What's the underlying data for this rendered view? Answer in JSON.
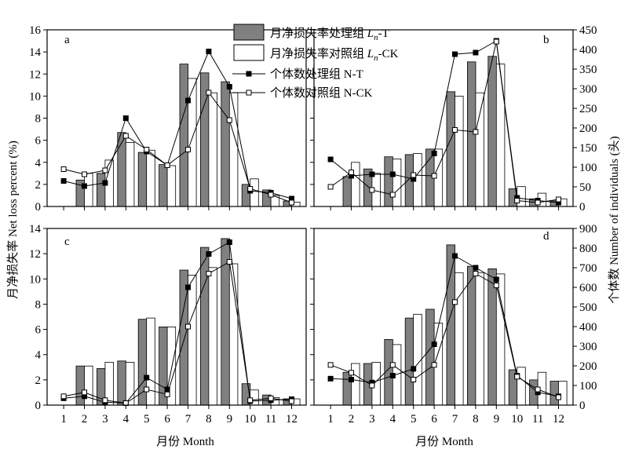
{
  "figure": {
    "left_axis_title": "月净损失率 Net loss percent (%)",
    "right_axis_title": "个体数 Number of individuals (头)",
    "x_axis_title": "月份  Month"
  },
  "legend": {
    "items": [
      {
        "label": "月净损失率处理组",
        "sym": "L",
        "sub": "n",
        "suffix": "-T",
        "kind": "bar",
        "color": "#808080"
      },
      {
        "label": "月净损失率对照组",
        "sym": "L",
        "sub": "n",
        "suffix": "-CK",
        "kind": "bar",
        "color": "#ffffff"
      },
      {
        "label": "个体数处理组 N-T",
        "kind": "line",
        "marker": "filled-square"
      },
      {
        "label": "个体数对照组 N-CK",
        "kind": "line",
        "marker": "open-square"
      }
    ]
  },
  "colors": {
    "bar_treatment": "#808080",
    "bar_control": "#ffffff",
    "line": "#000000"
  },
  "chart_data": [
    {
      "panel": "a",
      "type": "bar",
      "categories": [
        "1",
        "2",
        "3",
        "4",
        "5",
        "6",
        "7",
        "8",
        "9",
        "10",
        "11",
        "12"
      ],
      "left_ylim": [
        0,
        16
      ],
      "left_yticks": [
        0,
        2,
        4,
        6,
        8,
        10,
        12,
        14,
        16
      ],
      "right_ylim": [
        0,
        450
      ],
      "right_yticks": [
        0,
        50,
        100,
        150,
        200,
        250,
        300,
        350,
        400,
        450
      ],
      "series": [
        {
          "name": "月净损失率处理组 Ln-T",
          "kind": "bar",
          "axis": "left",
          "values": [
            null,
            2.4,
            3.0,
            6.7,
            4.9,
            3.8,
            12.9,
            12.1,
            11.3,
            2.0,
            1.5,
            0.5
          ]
        },
        {
          "name": "月净损失率对照组 Ln-CK",
          "kind": "bar",
          "axis": "left",
          "values": [
            null,
            3.0,
            4.2,
            5.8,
            5.1,
            3.7,
            11.6,
            10.3,
            10.3,
            2.5,
            1.0,
            0.4
          ]
        },
        {
          "name": "个体数处理组 N-T",
          "kind": "line",
          "axis": "right",
          "marker": "filled",
          "values": [
            65,
            52,
            60,
            225,
            140,
            105,
            270,
            395,
            305,
            40,
            35,
            20
          ]
        },
        {
          "name": "个体数对照组 N-CK",
          "kind": "line",
          "axis": "right",
          "marker": "open",
          "values": [
            95,
            82,
            92,
            180,
            145,
            105,
            145,
            290,
            220,
            45,
            30,
            10
          ]
        }
      ]
    },
    {
      "panel": "b",
      "type": "bar",
      "categories": [
        "1",
        "2",
        "3",
        "4",
        "5",
        "6",
        "7",
        "8",
        "9",
        "10",
        "11",
        "12"
      ],
      "left_ylim": [
        0,
        16
      ],
      "left_yticks": [
        0,
        2,
        4,
        6,
        8,
        10,
        12,
        14,
        16
      ],
      "right_ylim": [
        0,
        450
      ],
      "right_yticks": [
        0,
        50,
        100,
        150,
        200,
        250,
        300,
        350,
        400,
        450
      ],
      "series": [
        {
          "name": "月净损失率处理组 Ln-T",
          "kind": "bar",
          "axis": "left",
          "values": [
            null,
            2.7,
            3.4,
            4.5,
            4.7,
            5.2,
            10.4,
            13.1,
            13.6,
            1.6,
            0.7,
            0.5
          ]
        },
        {
          "name": "月净损失率对照组 Ln-CK",
          "kind": "bar",
          "axis": "left",
          "values": [
            null,
            4.0,
            3.0,
            4.3,
            4.8,
            5.2,
            10.0,
            10.3,
            12.9,
            1.8,
            1.2,
            0.7
          ]
        },
        {
          "name": "个体数处理组 N-T",
          "kind": "line",
          "axis": "right",
          "marker": "filled",
          "values": [
            120,
            78,
            82,
            82,
            70,
            135,
            388,
            392,
            422,
            22,
            15,
            10
          ]
        },
        {
          "name": "个体数对照组 N-CK",
          "kind": "line",
          "axis": "right",
          "marker": "open",
          "values": [
            50,
            87,
            42,
            30,
            80,
            78,
            195,
            190,
            420,
            15,
            10,
            18
          ]
        }
      ]
    },
    {
      "panel": "c",
      "type": "bar",
      "categories": [
        "1",
        "2",
        "3",
        "4",
        "5",
        "6",
        "7",
        "8",
        "9",
        "10",
        "11",
        "12"
      ],
      "left_ylim": [
        0,
        14
      ],
      "left_yticks": [
        0,
        2,
        4,
        6,
        8,
        10,
        12,
        14
      ],
      "right_ylim": [
        0,
        900
      ],
      "right_yticks": [
        0,
        100,
        200,
        300,
        400,
        500,
        600,
        700,
        800,
        900
      ],
      "series": [
        {
          "name": "月净损失率处理组 Ln-T",
          "kind": "bar",
          "axis": "left",
          "values": [
            null,
            3.1,
            2.9,
            3.5,
            6.8,
            6.2,
            10.7,
            12.5,
            13.2,
            1.7,
            0.8,
            0.5
          ]
        },
        {
          "name": "月净损失率对照组 Ln-CK",
          "kind": "bar",
          "axis": "left",
          "values": [
            null,
            3.1,
            3.4,
            3.4,
            6.9,
            6.2,
            10.3,
            10.9,
            11.2,
            1.2,
            0.6,
            0.5
          ]
        },
        {
          "name": "个体数处理组 N-T",
          "kind": "line",
          "axis": "right",
          "marker": "filled",
          "values": [
            35,
            45,
            15,
            10,
            140,
            80,
            600,
            770,
            830,
            20,
            25,
            30
          ]
        },
        {
          "name": "个体数对照组 N-CK",
          "kind": "line",
          "axis": "right",
          "marker": "open",
          "values": [
            45,
            65,
            25,
            10,
            80,
            55,
            400,
            670,
            730,
            25,
            35,
            20
          ]
        }
      ]
    },
    {
      "panel": "d",
      "type": "bar",
      "categories": [
        "1",
        "2",
        "3",
        "4",
        "5",
        "6",
        "7",
        "8",
        "9",
        "10",
        "11",
        "12"
      ],
      "left_ylim": [
        0,
        14
      ],
      "left_yticks": [
        0,
        2,
        4,
        6,
        8,
        10,
        12,
        14
      ],
      "right_ylim": [
        0,
        900
      ],
      "right_yticks": [
        0,
        100,
        200,
        300,
        400,
        500,
        600,
        700,
        800,
        900
      ],
      "series": [
        {
          "name": "月净损失率处理组 Ln-T",
          "kind": "bar",
          "axis": "left",
          "values": [
            null,
            2.6,
            3.3,
            5.2,
            6.9,
            7.6,
            12.7,
            11.0,
            10.8,
            2.8,
            2.0,
            1.9
          ]
        },
        {
          "name": "月净损失率对照组 Ln-CK",
          "kind": "bar",
          "axis": "left",
          "values": [
            null,
            3.3,
            3.4,
            4.8,
            7.2,
            6.5,
            10.5,
            10.5,
            10.4,
            3.0,
            2.6,
            1.9
          ]
        },
        {
          "name": "个体数处理组 N-T",
          "kind": "line",
          "axis": "right",
          "marker": "filled",
          "values": [
            135,
            130,
            115,
            150,
            185,
            310,
            760,
            700,
            640,
            150,
            65,
            45
          ]
        },
        {
          "name": "个体数对照组 N-CK",
          "kind": "line",
          "axis": "right",
          "marker": "open",
          "values": [
            205,
            165,
            100,
            205,
            130,
            205,
            525,
            670,
            610,
            145,
            80,
            40
          ]
        }
      ]
    }
  ]
}
